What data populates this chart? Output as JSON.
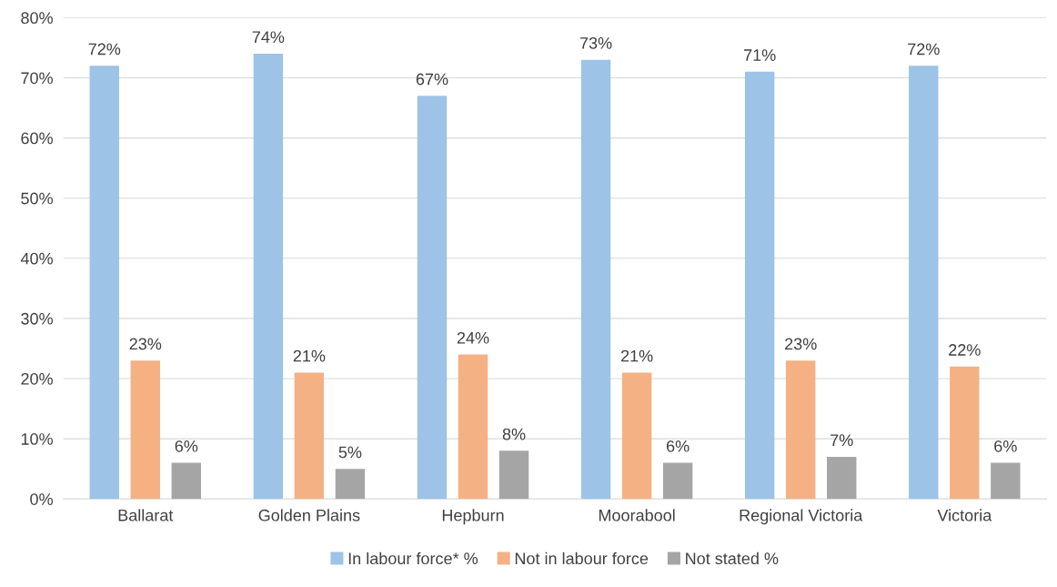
{
  "chart_data": {
    "type": "bar",
    "categories": [
      "Ballarat",
      "Golden Plains",
      "Hepburn",
      "Moorabool",
      "Regional Victoria",
      "Victoria"
    ],
    "series": [
      {
        "name": "In labour force* %",
        "color": "#9dc3e6",
        "values": [
          72,
          74,
          67,
          73,
          71,
          72
        ],
        "value_labels": [
          "72%",
          "74%",
          "67%",
          "73%",
          "71%",
          "72%"
        ]
      },
      {
        "name": "Not in labour force",
        "color": "#f4b183",
        "values": [
          23,
          21,
          24,
          21,
          23,
          22
        ],
        "value_labels": [
          "23%",
          "21%",
          "24%",
          "21%",
          "23%",
          "22%"
        ]
      },
      {
        "name": "Not stated %",
        "color": "#a5a5a5",
        "values": [
          6,
          5,
          8,
          6,
          7,
          6
        ],
        "value_labels": [
          "6%",
          "5%",
          "8%",
          "6%",
          "7%",
          "6%"
        ]
      }
    ],
    "ylim": [
      0,
      80
    ],
    "yticks": [
      {
        "value": 0,
        "label": "0%"
      },
      {
        "value": 10,
        "label": "10%"
      },
      {
        "value": 20,
        "label": "20%"
      },
      {
        "value": 30,
        "label": "30%"
      },
      {
        "value": 40,
        "label": "40%"
      },
      {
        "value": 50,
        "label": "50%"
      },
      {
        "value": 60,
        "label": "60%"
      },
      {
        "value": 70,
        "label": "70%"
      },
      {
        "value": 80,
        "label": "80%"
      }
    ],
    "grid": "y",
    "legend": "bottom"
  }
}
